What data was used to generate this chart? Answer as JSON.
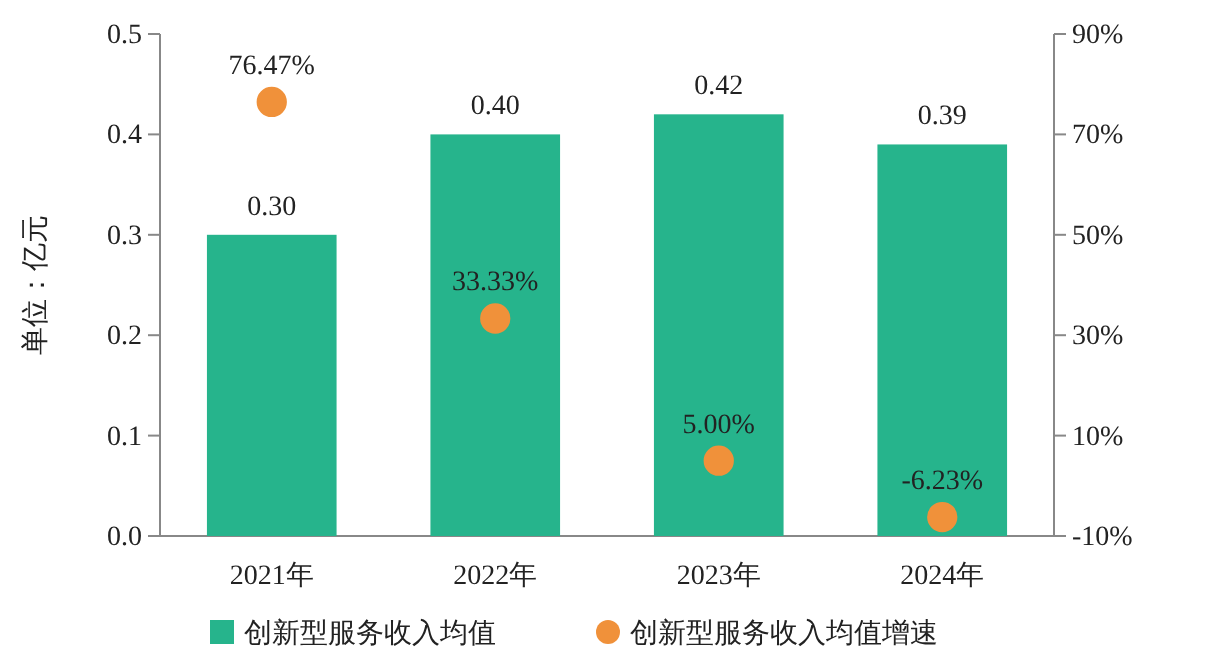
{
  "chart_data": {
    "type": "bar",
    "ylabel": "单位：亿元",
    "categories": [
      "2021年",
      "2022年",
      "2023年",
      "2024年"
    ],
    "series": [
      {
        "name": "创新型服务收入均值",
        "color": "#26b48c",
        "values": [
          0.3,
          0.4,
          0.42,
          0.39
        ],
        "value_labels": [
          "0.30",
          "0.40",
          "0.42",
          "0.39"
        ]
      },
      {
        "name": "创新型服务收入均值增速",
        "type": "scatter",
        "axis": "y2",
        "color": "#f0913a",
        "values": [
          76.47,
          33.33,
          5.0,
          -6.23
        ],
        "value_labels": [
          "76.47%",
          "33.33%",
          "5.00%",
          "-6.23%"
        ]
      }
    ],
    "ylim": [
      0,
      0.5
    ],
    "yticks": [
      {
        "value": 0,
        "label": "0.0"
      },
      {
        "value": 0.1,
        "label": "0.1"
      },
      {
        "value": 0.2,
        "label": "0.2"
      },
      {
        "value": 0.3,
        "label": "0.3"
      },
      {
        "value": 0.4,
        "label": "0.4"
      },
      {
        "value": 0.5,
        "label": "0.5"
      }
    ],
    "y2lim": [
      -10,
      90
    ],
    "y2ticks": [
      {
        "value": -10,
        "label": "-10%"
      },
      {
        "value": 10,
        "label": "10%"
      },
      {
        "value": 30,
        "label": "30%"
      },
      {
        "value": 50,
        "label": "50%"
      },
      {
        "value": 70,
        "label": "70%"
      },
      {
        "value": 90,
        "label": "90%"
      }
    ],
    "legend": "bottom",
    "marker": "circle"
  }
}
